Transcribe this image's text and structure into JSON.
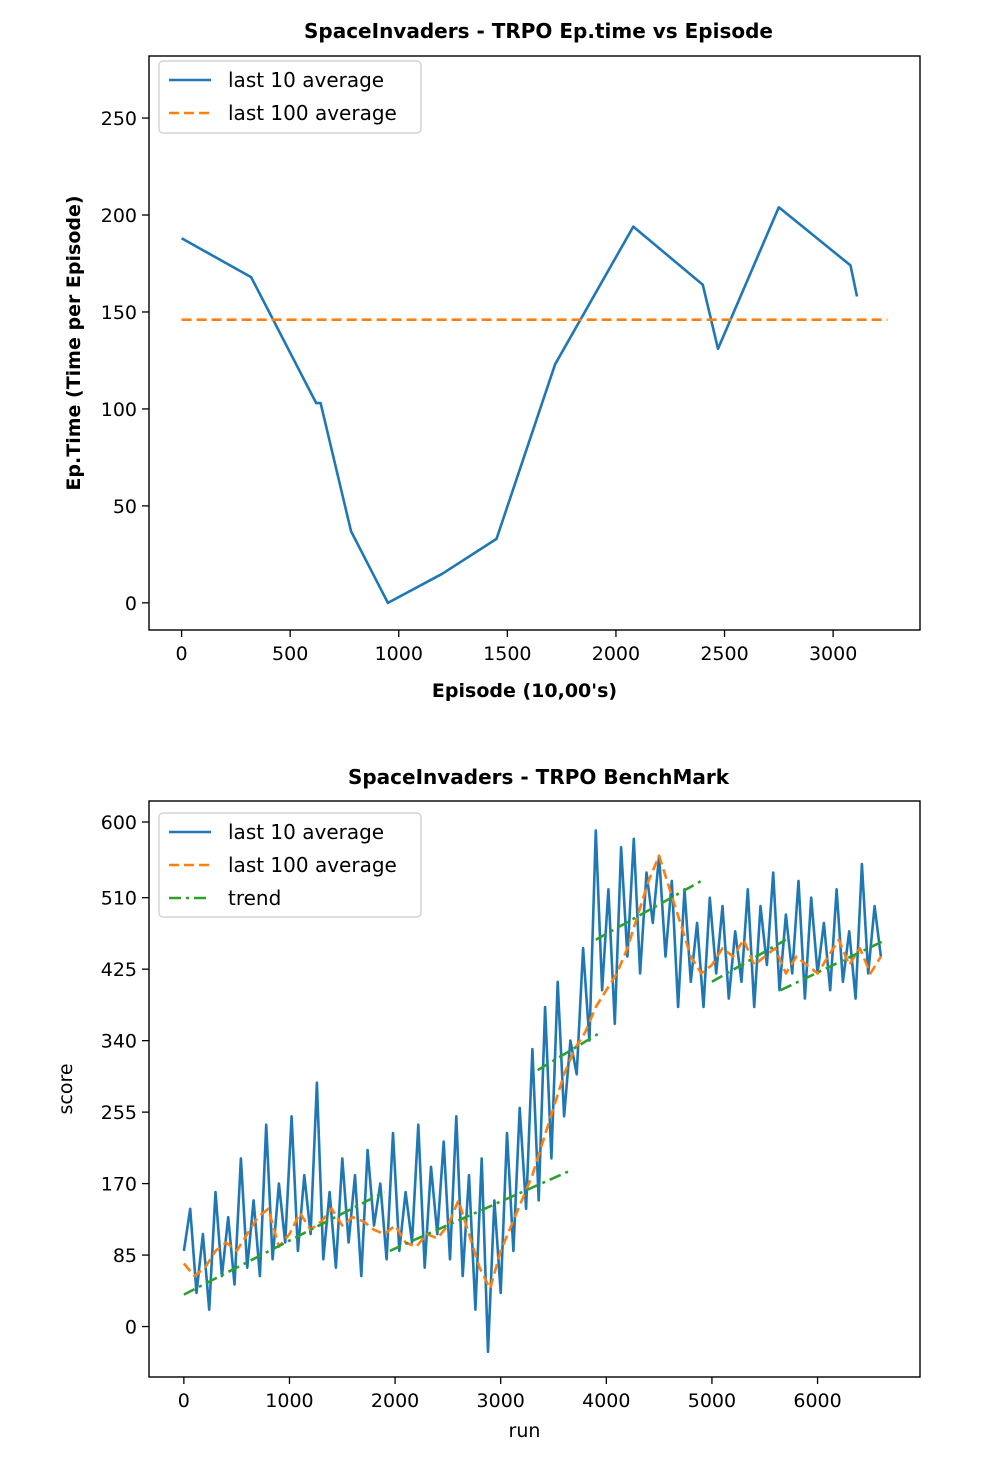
{
  "chart_data": [
    {
      "type": "line",
      "title": "SpaceInvaders - TRPO Ep.time vs Episode",
      "xlabel": "Episode (10,00's)",
      "ylabel": "Ep.Time (Time per Episode)",
      "xlim": [
        -150,
        3400
      ],
      "ylim": [
        -14,
        282
      ],
      "xticks": [
        0,
        500,
        1000,
        1500,
        2000,
        2500,
        3000
      ],
      "yticks": [
        0,
        50,
        100,
        150,
        200,
        250
      ],
      "grid": false,
      "legend_position": "top-left",
      "series": [
        {
          "name": "last 10 average",
          "color": "#1f77b4",
          "style": "solid",
          "x": [
            0,
            320,
            620,
            640,
            780,
            950,
            1200,
            1450,
            1720,
            2080,
            2400,
            2470,
            2750,
            3080,
            3110
          ],
          "y": [
            188,
            168,
            103,
            103,
            37,
            0,
            15,
            33,
            123,
            194,
            164,
            131,
            204,
            174,
            158
          ]
        },
        {
          "name": "last 100 average",
          "color": "#ff7f0e",
          "style": "dashed",
          "x": [
            0,
            3250
          ],
          "y": [
            146,
            146
          ]
        }
      ]
    },
    {
      "type": "line",
      "title": "SpaceInvaders - TRPO BenchMark",
      "xlabel": "run",
      "ylabel": "score",
      "xlim": [
        -330,
        6970
      ],
      "ylim": [
        -60,
        625
      ],
      "xticks": [
        0,
        1000,
        2000,
        3000,
        4000,
        5000,
        6000
      ],
      "yticks": [
        0,
        85,
        170,
        255,
        340,
        425,
        510,
        600
      ],
      "grid": false,
      "legend_position": "top-left",
      "series": [
        {
          "name": "last 10 average",
          "color": "#1f77b4",
          "style": "solid",
          "x": [
            0,
            60,
            120,
            180,
            240,
            300,
            360,
            420,
            480,
            540,
            600,
            660,
            720,
            780,
            840,
            900,
            960,
            1020,
            1080,
            1140,
            1200,
            1260,
            1320,
            1380,
            1440,
            1500,
            1560,
            1620,
            1680,
            1740,
            1800,
            1860,
            1920,
            1980,
            2040,
            2100,
            2160,
            2220,
            2280,
            2340,
            2400,
            2460,
            2520,
            2580,
            2640,
            2700,
            2760,
            2820,
            2880,
            2940,
            3000,
            3060,
            3120,
            3180,
            3240,
            3300,
            3360,
            3420,
            3480,
            3540,
            3600,
            3660,
            3720,
            3780,
            3840,
            3900,
            3960,
            4020,
            4080,
            4140,
            4200,
            4260,
            4320,
            4380,
            4440,
            4500,
            4560,
            4620,
            4680,
            4740,
            4800,
            4860,
            4920,
            4980,
            5040,
            5100,
            5160,
            5220,
            5280,
            5340,
            5400,
            5460,
            5520,
            5580,
            5640,
            5700,
            5760,
            5820,
            5880,
            5940,
            6000,
            6060,
            6120,
            6180,
            6240,
            6300,
            6360,
            6420,
            6480,
            6540,
            6600
          ],
          "y": [
            90,
            140,
            40,
            110,
            20,
            160,
            60,
            130,
            50,
            200,
            70,
            150,
            60,
            240,
            80,
            170,
            100,
            250,
            90,
            180,
            110,
            290,
            80,
            160,
            70,
            200,
            100,
            180,
            60,
            210,
            120,
            170,
            80,
            230,
            90,
            160,
            100,
            240,
            70,
            190,
            110,
            220,
            80,
            250,
            60,
            180,
            20,
            200,
            -30,
            150,
            40,
            230,
            90,
            260,
            140,
            330,
            150,
            380,
            200,
            410,
            250,
            340,
            300,
            450,
            340,
            590,
            400,
            520,
            360,
            570,
            440,
            580,
            420,
            540,
            480,
            560,
            440,
            530,
            380,
            520,
            410,
            480,
            380,
            510,
            420,
            500,
            390,
            470,
            410,
            520,
            380,
            500,
            430,
            540,
            400,
            490,
            420,
            530,
            390,
            510,
            420,
            480,
            400,
            520,
            410,
            470,
            390,
            550,
            420,
            500,
            440
          ]
        },
        {
          "name": "last 100 average",
          "color": "#ff7f0e",
          "style": "dashed",
          "x": [
            0,
            100,
            200,
            300,
            400,
            500,
            600,
            700,
            800,
            900,
            1000,
            1100,
            1200,
            1300,
            1400,
            1500,
            1600,
            1700,
            1800,
            1900,
            2000,
            2100,
            2200,
            2300,
            2400,
            2500,
            2600,
            2700,
            2800,
            2900,
            3000,
            3100,
            3200,
            3300,
            3400,
            3500,
            3600,
            3700,
            3800,
            3900,
            4000,
            4100,
            4200,
            4300,
            4400,
            4500,
            4600,
            4700,
            4800,
            4900,
            5000,
            5100,
            5200,
            5300,
            5400,
            5500,
            5600,
            5700,
            5800,
            5900,
            6000,
            6100,
            6200,
            6300,
            6400,
            6500,
            6600
          ],
          "y": [
            75,
            60,
            70,
            90,
            100,
            90,
            110,
            130,
            140,
            95,
            110,
            135,
            115,
            125,
            140,
            120,
            130,
            125,
            115,
            110,
            120,
            100,
            95,
            110,
            105,
            120,
            150,
            110,
            70,
            45,
            90,
            120,
            150,
            180,
            220,
            260,
            300,
            330,
            350,
            380,
            400,
            420,
            450,
            490,
            530,
            560,
            520,
            480,
            440,
            420,
            430,
            450,
            440,
            460,
            430,
            440,
            450,
            420,
            440,
            430,
            420,
            440,
            460,
            430,
            450,
            420,
            440
          ]
        },
        {
          "name": "trend",
          "color": "#2ca02c",
          "style": "dashdot",
          "segments": [
            {
              "x": [
                0,
                1900
              ],
              "y": [
                38,
                160
              ]
            },
            {
              "x": [
                1950,
                3650
              ],
              "y": [
                90,
                185
              ]
            },
            {
              "x": [
                3350,
                3950
              ],
              "y": [
                305,
                350
              ]
            },
            {
              "x": [
                3900,
                4900
              ],
              "y": [
                460,
                530
              ]
            },
            {
              "x": [
                5000,
                5700
              ],
              "y": [
                410,
                460
              ]
            },
            {
              "x": [
                5650,
                6650
              ],
              "y": [
                400,
                460
              ]
            }
          ]
        }
      ]
    }
  ]
}
